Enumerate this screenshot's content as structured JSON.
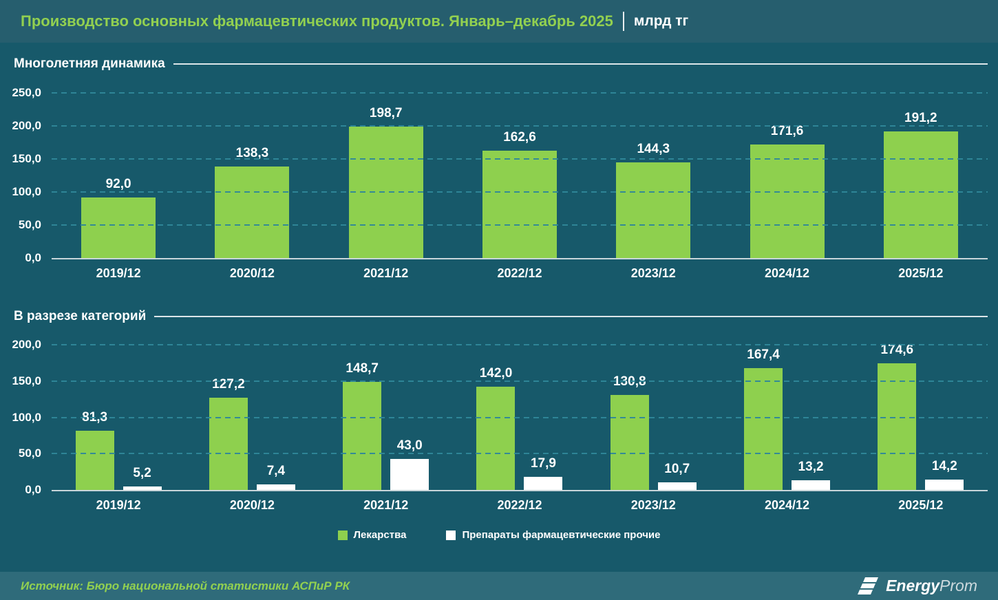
{
  "header": {
    "title": "Производство основных фармацевтических продуктов. Январь–декабрь 2025",
    "unit": "млрд тг"
  },
  "colors": {
    "background": "#17596a",
    "header_bg": "#265e6e",
    "footer_bg": "#2f6b7a",
    "accent_green": "#92d050",
    "bar_green": "#8ed04e",
    "bar_white": "#ffffff",
    "gridline": "#2f8799",
    "axis_line": "#c9d6da",
    "text": "#ffffff"
  },
  "chart_data": [
    {
      "type": "bar",
      "title": "Многолетняя динамика",
      "categories": [
        "2019/12",
        "2020/12",
        "2021/12",
        "2022/12",
        "2023/12",
        "2024/12",
        "2025/12"
      ],
      "series": [
        {
          "key": "total",
          "color": "#8ed04e",
          "values": [
            92.0,
            138.3,
            198.7,
            162.6,
            144.3,
            171.6,
            191.2
          ],
          "labels": [
            "92,0",
            "138,3",
            "198,7",
            "162,6",
            "144,3",
            "171,6",
            "191,2"
          ]
        }
      ],
      "ylim": [
        0,
        250
      ],
      "ytick_step": 50,
      "yticks": [
        "0,0",
        "50,0",
        "100,0",
        "150,0",
        "200,0",
        "250,0"
      ],
      "grid": "dashed horizontal",
      "legend": false
    },
    {
      "type": "bar",
      "title": "В разрезе категорий",
      "categories": [
        "2019/12",
        "2020/12",
        "2021/12",
        "2022/12",
        "2023/12",
        "2024/12",
        "2025/12"
      ],
      "series": [
        {
          "key": "medicines",
          "name": "Лекарства",
          "color": "#8ed04e",
          "values": [
            81.3,
            127.2,
            148.7,
            142.0,
            130.8,
            167.4,
            174.6
          ],
          "labels": [
            "81,3",
            "127,2",
            "148,7",
            "142,0",
            "130,8",
            "167,4",
            "174,6"
          ]
        },
        {
          "key": "other-pharma",
          "name": "Препараты фармацевтические прочие",
          "color": "#ffffff",
          "values": [
            5.2,
            7.4,
            43.0,
            17.9,
            10.7,
            13.2,
            14.2
          ],
          "labels": [
            "5,2",
            "7,4",
            "43,0",
            "17,9",
            "10,7",
            "13,2",
            "14,2"
          ]
        }
      ],
      "ylim": [
        0,
        200
      ],
      "ytick_step": 50,
      "yticks": [
        "0,0",
        "50,0",
        "100,0",
        "150,0",
        "200,0"
      ],
      "grid": "dashed horizontal",
      "legend": true,
      "legend_position": "bottom"
    }
  ],
  "footer": {
    "source": "Источник: Бюро национальной статистики АСПиР РК",
    "logo_bold": "Energy",
    "logo_light": "Prom"
  }
}
